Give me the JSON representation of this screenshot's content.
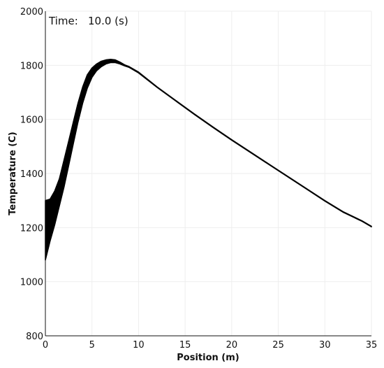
{
  "chart_data": {
    "type": "line",
    "time_label": "Time:",
    "time_value": "10.0 (s)",
    "xlabel": "Position (m)",
    "ylabel": "Temperature (C)",
    "xlim": [
      0,
      35
    ],
    "ylim": [
      800,
      2000
    ],
    "xticks": [
      0,
      5,
      10,
      15,
      20,
      25,
      30,
      35
    ],
    "yticks": [
      800,
      1000,
      1200,
      1400,
      1600,
      1800,
      2000
    ],
    "grid": true,
    "line_color": "#000000",
    "series": [
      {
        "x": [
          0,
          0.5,
          1,
          1.5,
          2,
          2.5,
          3,
          3.5,
          4,
          4.5,
          5,
          5.5,
          6,
          6.5,
          7,
          7.5,
          8,
          8.5,
          9,
          10,
          12,
          14,
          16,
          18,
          20,
          22,
          24,
          26,
          28,
          30,
          32,
          34,
          35
        ],
        "y_upper": [
          1300,
          1305,
          1335,
          1380,
          1450,
          1520,
          1590,
          1660,
          1720,
          1765,
          1790,
          1805,
          1815,
          1820,
          1822,
          1820,
          1812,
          1802,
          1795,
          1775,
          1720,
          1670,
          1620,
          1572,
          1525,
          1480,
          1435,
          1390,
          1345,
          1300,
          1258,
          1225,
          1205
        ],
        "y_lower": [
          1080,
          1150,
          1210,
          1280,
          1350,
          1430,
          1510,
          1590,
          1660,
          1715,
          1755,
          1780,
          1795,
          1805,
          1810,
          1810,
          1805,
          1798,
          1792,
          1772,
          1718,
          1668,
          1618,
          1570,
          1523,
          1478,
          1433,
          1388,
          1343,
          1298,
          1256,
          1223,
          1203
        ]
      }
    ]
  }
}
